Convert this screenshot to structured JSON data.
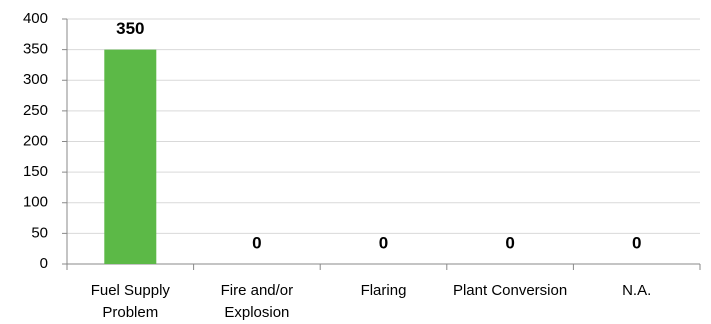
{
  "chart_data": {
    "type": "bar",
    "categories": [
      "Fuel Supply Problem",
      "Fire and/or Explosion",
      "Flaring",
      "Plant Conversion",
      "N.A."
    ],
    "values": [
      350,
      0,
      0,
      0,
      0
    ],
    "color": "#5cb947",
    "ylim": [
      0,
      400
    ],
    "yticks": [
      0,
      50,
      100,
      150,
      200,
      250,
      300,
      350,
      400
    ],
    "grid": true
  }
}
